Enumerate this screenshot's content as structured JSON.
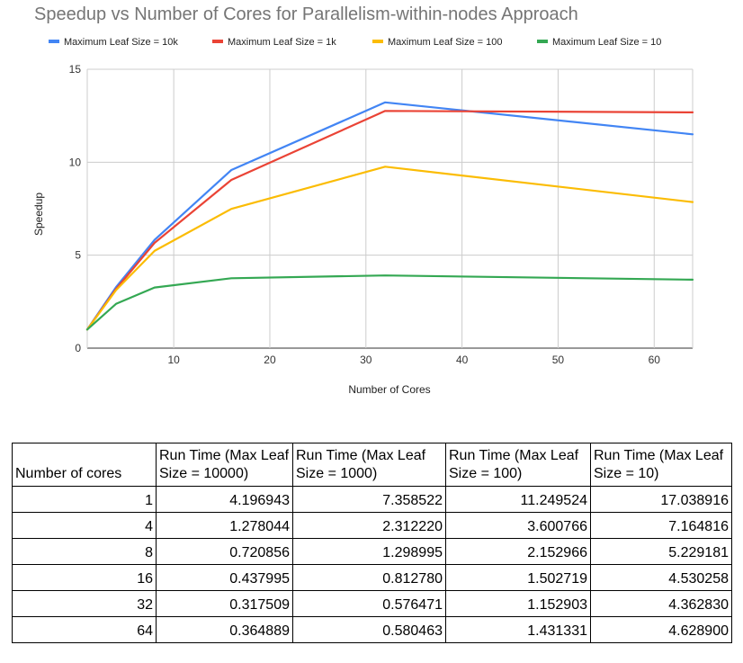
{
  "chart_data": {
    "type": "line",
    "title": "Speedup vs Number of Cores for Parallelism-within-nodes Approach",
    "xlabel": "Number of Cores",
    "ylabel": "Speedup",
    "x": [
      1,
      4,
      8,
      16,
      32,
      64
    ],
    "xlim": [
      1,
      64
    ],
    "ylim": [
      0,
      15
    ],
    "xticks": [
      10,
      20,
      30,
      40,
      50,
      60
    ],
    "yticks": [
      0,
      5,
      10,
      15
    ],
    "grid": true,
    "legend_position": "top",
    "series": [
      {
        "name": "Maximum Leaf Size = 10k",
        "color": "#4285f4",
        "values": [
          1.0,
          3.28,
          5.82,
          9.58,
          13.22,
          11.5
        ]
      },
      {
        "name": "Maximum Leaf Size = 1k",
        "color": "#ea4335",
        "values": [
          1.0,
          3.18,
          5.66,
          9.05,
          12.76,
          12.68
        ]
      },
      {
        "name": "Maximum Leaf Size = 100",
        "color": "#fbbc04",
        "values": [
          1.0,
          3.12,
          5.23,
          7.49,
          9.76,
          7.86
        ]
      },
      {
        "name": "Maximum Leaf Size = 10",
        "color": "#34a853",
        "values": [
          1.0,
          2.38,
          3.26,
          3.76,
          3.91,
          3.68
        ]
      }
    ]
  },
  "table": {
    "headers": [
      "Number of cores",
      "Run Time (Max Leaf Size = 10000)",
      "Run Time (Max Leaf Size = 1000)",
      "Run Time (Max Leaf Size = 100)",
      "Run Time (Max Leaf Size = 10)"
    ],
    "rows": [
      [
        "1",
        "4.196943",
        "7.358522",
        "11.249524",
        "17.038916"
      ],
      [
        "4",
        "1.278044",
        "2.312220",
        "3.600766",
        "7.164816"
      ],
      [
        "8",
        "0.720856",
        "1.298995",
        "2.152966",
        "5.229181"
      ],
      [
        "16",
        "0.437995",
        "0.812780",
        "1.502719",
        "4.530258"
      ],
      [
        "32",
        "0.317509",
        "0.576471",
        "1.152903",
        "4.362830"
      ],
      [
        "64",
        "0.364889",
        "0.580463",
        "1.431331",
        "4.628900"
      ]
    ]
  }
}
